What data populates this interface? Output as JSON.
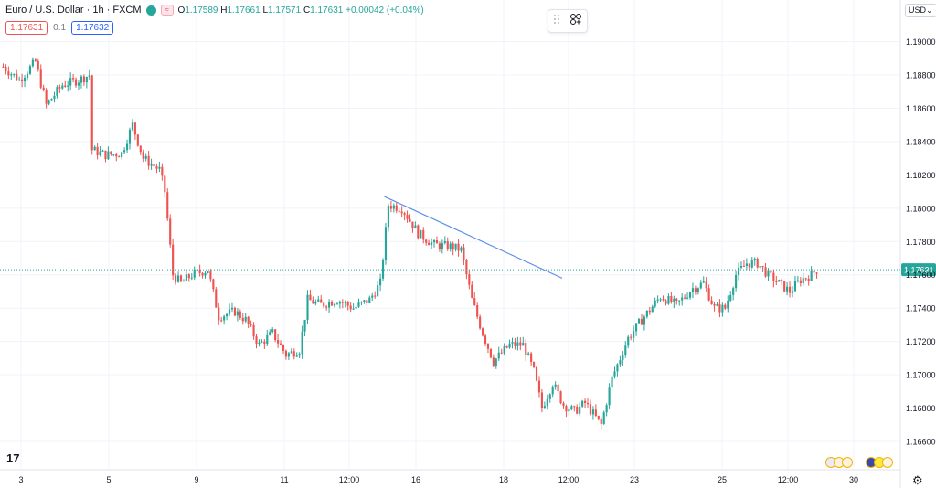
{
  "header": {
    "symbol_title": "Euro / U.S. Dollar · 1h · FXCM",
    "ohlc": {
      "o_label": "O",
      "o": "1.17589",
      "h_label": "H",
      "h": "1.17661",
      "l_label": "L",
      "l": "1.17571",
      "c_label": "C",
      "c": "1.17631",
      "change": "+0.00042 (+0.04%)"
    },
    "sell_price": "1.17631",
    "spread": "0.1",
    "buy_price": "1.17632",
    "currency": "USD",
    "logo": "17"
  },
  "icons": {
    "drag_handle": "drag-handle-icon",
    "add_indicator": "object-tree-icon",
    "settings": "gear-icon"
  },
  "colors": {
    "up": "#26a69a",
    "down": "#ef5350",
    "trendline": "#5b8fe8",
    "current_price_line": "#26a69a",
    "grid": "#f0f3fa"
  },
  "chart_data": {
    "type": "candlestick",
    "title": "Euro / U.S. Dollar · 1h · FXCM",
    "current_price": 1.17631,
    "current_price_label": "1.17631",
    "y_ticks": [
      1.19,
      1.188,
      1.186,
      1.184,
      1.182,
      1.18,
      1.178,
      1.176,
      1.174,
      1.172,
      1.17,
      1.168,
      1.166
    ],
    "y_tick_labels": [
      "1.19000",
      "1.18800",
      "1.18600",
      "1.18400",
      "1.18200",
      "1.18000",
      "1.17800",
      "1.17600",
      "1.17400",
      "1.17200",
      "1.17000",
      "1.16800",
      "1.16600"
    ],
    "ylim": [
      1.1643,
      1.1925
    ],
    "x_tick_labels": [
      "3",
      "5",
      "9",
      "11",
      "12:00",
      "16",
      "18",
      "12:00",
      "23",
      "25",
      "12:00",
      "30"
    ],
    "grid": true,
    "trendline": {
      "start": {
        "bar": 142,
        "price": 1.1807
      },
      "end": {
        "bar": 208,
        "price": 1.1758
      }
    },
    "close_path": [
      [
        0,
        1.1885
      ],
      [
        6,
        1.1877
      ],
      [
        12,
        1.1888
      ],
      [
        16,
        1.1862
      ],
      [
        22,
        1.1874
      ],
      [
        28,
        1.1877
      ],
      [
        32,
        1.188
      ],
      [
        33,
        1.1835
      ],
      [
        38,
        1.1832
      ],
      [
        44,
        1.1833
      ],
      [
        48,
        1.185
      ],
      [
        52,
        1.183
      ],
      [
        58,
        1.1823
      ],
      [
        60,
        1.181
      ],
      [
        63,
        1.176
      ],
      [
        66,
        1.1755
      ],
      [
        70,
        1.176
      ],
      [
        76,
        1.1763
      ],
      [
        80,
        1.1735
      ],
      [
        86,
        1.1738
      ],
      [
        90,
        1.1733
      ],
      [
        95,
        1.1718
      ],
      [
        100,
        1.1725
      ],
      [
        105,
        1.1712
      ],
      [
        110,
        1.1715
      ],
      [
        113,
        1.1745
      ],
      [
        118,
        1.1742
      ],
      [
        124,
        1.1745
      ],
      [
        130,
        1.174
      ],
      [
        136,
        1.1745
      ],
      [
        140,
        1.1755
      ],
      [
        143,
        1.1802
      ],
      [
        148,
        1.18
      ],
      [
        154,
        1.1785
      ],
      [
        160,
        1.1778
      ],
      [
        166,
        1.1777
      ],
      [
        170,
        1.1775
      ],
      [
        174,
        1.1745
      ],
      [
        178,
        1.1725
      ],
      [
        182,
        1.1708
      ],
      [
        188,
        1.1718
      ],
      [
        193,
        1.1718
      ],
      [
        197,
        1.1702
      ],
      [
        200,
        1.168
      ],
      [
        204,
        1.1695
      ],
      [
        208,
        1.1682
      ],
      [
        212,
        1.1678
      ],
      [
        216,
        1.1683
      ],
      [
        222,
        1.167
      ],
      [
        226,
        1.1698
      ],
      [
        232,
        1.1722
      ],
      [
        238,
        1.1735
      ],
      [
        244,
        1.1747
      ],
      [
        250,
        1.1742
      ],
      [
        256,
        1.1752
      ],
      [
        260,
        1.1755
      ],
      [
        264,
        1.174
      ],
      [
        268,
        1.174
      ],
      [
        272,
        1.176
      ],
      [
        276,
        1.1767
      ],
      [
        280,
        1.1767
      ],
      [
        284,
        1.176
      ],
      [
        288,
        1.1755
      ],
      [
        292,
        1.175
      ],
      [
        296,
        1.1757
      ],
      [
        300,
        1.176
      ],
      [
        302,
        1.1763
      ]
    ]
  }
}
